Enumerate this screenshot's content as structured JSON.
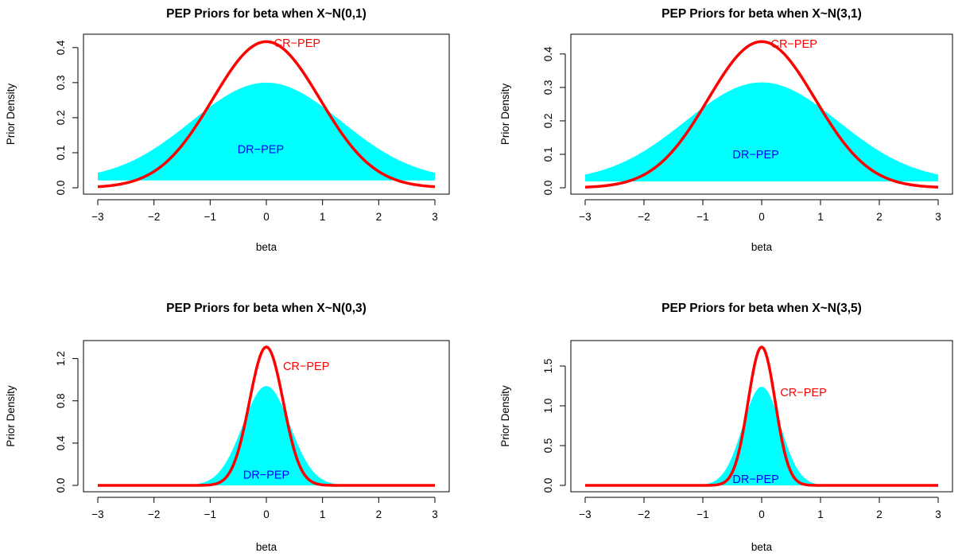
{
  "chart_data": [
    {
      "type": "area",
      "title": "PEP Priors for beta when X~N(0,1)",
      "xlabel": "beta",
      "ylabel": "Prior Density",
      "xlim": [
        -3,
        3
      ],
      "ylim": [
        0,
        0.42
      ],
      "xticks": [
        -3,
        -2,
        -1,
        0,
        1,
        2,
        3
      ],
      "yticks": [
        0.0,
        0.1,
        0.2,
        0.3,
        0.4
      ],
      "ytick_labels": [
        "0.0",
        "0.1",
        "0.2",
        "0.3",
        "0.4"
      ],
      "series": [
        {
          "name": "DR−PEP",
          "kind": "filled",
          "color": "#00ffff",
          "sd": 1.33,
          "peak": 0.3,
          "base": 0.021
        },
        {
          "name": "CR−PEP",
          "kind": "line",
          "color": "#ff0000",
          "sd": 0.955,
          "peak": 0.417,
          "base": 0
        }
      ],
      "annotations": [
        {
          "text": "CR−PEP",
          "x": 0.55,
          "y": 0.413,
          "color": "#ff0000"
        },
        {
          "text": "DR−PEP",
          "x": -0.1,
          "y": 0.11,
          "color": "#0000ff"
        }
      ]
    },
    {
      "type": "area",
      "title": "PEP Priors for beta when X~N(3,1)",
      "xlabel": "beta",
      "ylabel": "Prior Density",
      "xlim": [
        -3,
        3
      ],
      "ylim": [
        0,
        0.44
      ],
      "xticks": [
        -3,
        -2,
        -1,
        0,
        1,
        2,
        3
      ],
      "yticks": [
        0.0,
        0.1,
        0.2,
        0.3,
        0.4
      ],
      "ytick_labels": [
        "0.0",
        "0.1",
        "0.2",
        "0.3",
        "0.4"
      ],
      "series": [
        {
          "name": "DR−PEP",
          "kind": "filled",
          "color": "#00ffff",
          "sd": 1.3,
          "peak": 0.315,
          "base": 0.019
        },
        {
          "name": "CR−PEP",
          "kind": "line",
          "color": "#ff0000",
          "sd": 0.91,
          "peak": 0.437,
          "base": 0
        }
      ],
      "annotations": [
        {
          "text": "CR−PEP",
          "x": 0.55,
          "y": 0.43,
          "color": "#ff0000"
        },
        {
          "text": "DR−PEP",
          "x": -0.1,
          "y": 0.1,
          "color": "#0000ff"
        }
      ]
    },
    {
      "type": "area",
      "title": "PEP Priors for beta when X~N(0,3)",
      "xlabel": "beta",
      "ylabel": "Prior Density",
      "xlim": [
        -3,
        3
      ],
      "ylim": [
        0,
        1.31
      ],
      "xticks": [
        -3,
        -2,
        -1,
        0,
        1,
        2,
        3
      ],
      "yticks": [
        0.0,
        0.4,
        0.8,
        1.2
      ],
      "ytick_labels": [
        "0.0",
        "0.4",
        "0.8",
        "1.2"
      ],
      "series": [
        {
          "name": "DR−PEP",
          "kind": "filled",
          "color": "#00ffff",
          "sd": 0.42,
          "peak": 0.94,
          "base": 0
        },
        {
          "name": "CR−PEP",
          "kind": "line",
          "color": "#ff0000",
          "sd": 0.3,
          "peak": 1.31,
          "base": 0
        }
      ],
      "annotations": [
        {
          "text": "CR−PEP",
          "x": 0.71,
          "y": 1.13,
          "color": "#ff0000"
        },
        {
          "text": "DR−PEP",
          "x": 0.0,
          "y": 0.1,
          "color": "#0000ff"
        }
      ]
    },
    {
      "type": "area",
      "title": "PEP Priors for beta when X~N(3,5)",
      "xlabel": "beta",
      "ylabel": "Prior Density",
      "xlim": [
        -3,
        3
      ],
      "ylim": [
        0,
        1.74
      ],
      "xticks": [
        -3,
        -2,
        -1,
        0,
        1,
        2,
        3
      ],
      "yticks": [
        0.0,
        0.5,
        1.0,
        1.5
      ],
      "ytick_labels": [
        "0.0",
        "0.5",
        "1.0",
        "1.5"
      ],
      "series": [
        {
          "name": "DR−PEP",
          "kind": "filled",
          "color": "#00ffff",
          "sd": 0.32,
          "peak": 1.24,
          "base": 0
        },
        {
          "name": "CR−PEP",
          "kind": "line",
          "color": "#ff0000",
          "sd": 0.23,
          "peak": 1.74,
          "base": 0
        }
      ],
      "annotations": [
        {
          "text": "CR−PEP",
          "x": 0.71,
          "y": 1.17,
          "color": "#ff0000"
        },
        {
          "text": "DR−PEP",
          "x": -0.1,
          "y": 0.08,
          "color": "#0000ff"
        }
      ]
    }
  ]
}
